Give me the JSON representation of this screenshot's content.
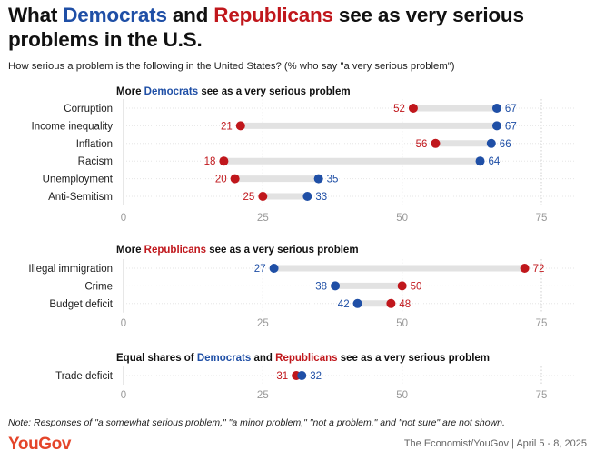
{
  "title": {
    "part1": "What ",
    "dem_word": "Democrats",
    "part2": " and ",
    "rep_word": "Republicans",
    "part3": " see as very serious problems in the U.S."
  },
  "subtitle": "How serious a problem is the following in the United States? (% who say \"a very serious problem\")",
  "colors": {
    "democrat": "#1f4fa6",
    "republican": "#c0171c",
    "connector": "#e2e2e2",
    "grid": "#cfcfcf",
    "tick": "#999999"
  },
  "chart_data": [
    {
      "type": "dot",
      "heading_parts": [
        {
          "text": "More ",
          "party": ""
        },
        {
          "text": "Democrats",
          "party": "dem"
        },
        {
          "text": " see as a very serious problem",
          "party": ""
        }
      ],
      "xlim": [
        0,
        75
      ],
      "xticks": [
        0,
        25,
        50,
        75
      ],
      "categories": [
        "Corruption",
        "Income inequality",
        "Inflation",
        "Racism",
        "Unemployment",
        "Anti-Semitism"
      ],
      "series": [
        {
          "name": "Democrats",
          "values": [
            67,
            67,
            66,
            64,
            35,
            33
          ]
        },
        {
          "name": "Republicans",
          "values": [
            52,
            21,
            56,
            18,
            20,
            25
          ]
        }
      ]
    },
    {
      "type": "dot",
      "heading_parts": [
        {
          "text": "More ",
          "party": ""
        },
        {
          "text": "Republicans",
          "party": "rep"
        },
        {
          "text": " see as a very serious problem",
          "party": ""
        }
      ],
      "xlim": [
        0,
        75
      ],
      "xticks": [
        0,
        25,
        50,
        75
      ],
      "categories": [
        "Illegal immigration",
        "Crime",
        "Budget deficit"
      ],
      "series": [
        {
          "name": "Democrats",
          "values": [
            27,
            38,
            42
          ]
        },
        {
          "name": "Republicans",
          "values": [
            72,
            50,
            48
          ]
        }
      ]
    },
    {
      "type": "dot",
      "heading_parts": [
        {
          "text": "Equal shares of ",
          "party": ""
        },
        {
          "text": "Democrats",
          "party": "dem"
        },
        {
          "text": " and ",
          "party": ""
        },
        {
          "text": "Republicans",
          "party": "rep"
        },
        {
          "text": " see as a very serious problem",
          "party": ""
        }
      ],
      "xlim": [
        0,
        75
      ],
      "xticks": [
        0,
        25,
        50,
        75
      ],
      "categories": [
        "Trade deficit"
      ],
      "series": [
        {
          "name": "Democrats",
          "values": [
            32
          ]
        },
        {
          "name": "Republicans",
          "values": [
            31
          ]
        }
      ]
    }
  ],
  "note": "Note: Responses of \"a somewhat serious problem,\" \"a minor problem,\" \"not a problem,\" and \"not sure\" are not shown.",
  "logo": "YouGov",
  "source": "The Economist/YouGov | April 5 - 8, 2025"
}
